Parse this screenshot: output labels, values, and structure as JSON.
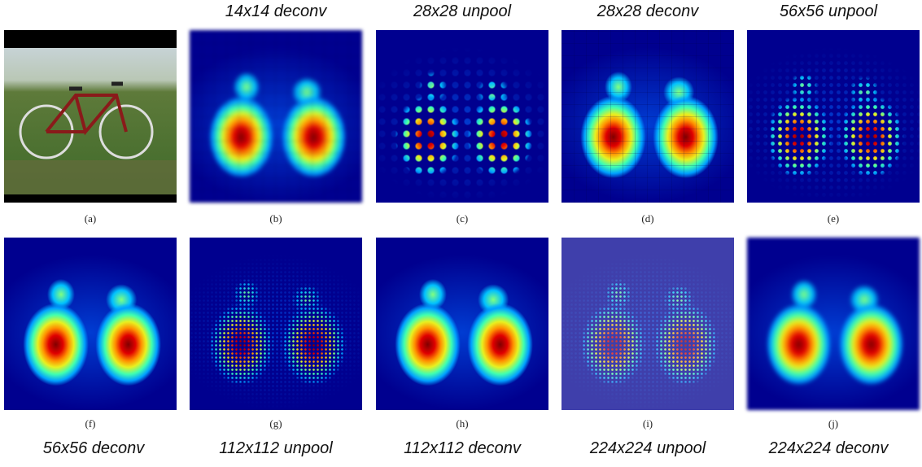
{
  "panels": [
    {
      "caption": "(a)"
    },
    {
      "caption": "(b)",
      "label": "14x14 deconv"
    },
    {
      "caption": "(c)",
      "label": "28x28 unpool"
    },
    {
      "caption": "(d)",
      "label": "28x28 deconv"
    },
    {
      "caption": "(e)",
      "label": "56x56 unpool"
    },
    {
      "caption": "(f)",
      "label": "56x56 deconv"
    },
    {
      "caption": "(g)",
      "label": "112x112 unpool"
    },
    {
      "caption": "(h)",
      "label": "112x112 deconv"
    },
    {
      "caption": "(i)",
      "label": "224x224 unpool"
    },
    {
      "caption": "(j)",
      "label": "224x224 deconv"
    }
  ]
}
